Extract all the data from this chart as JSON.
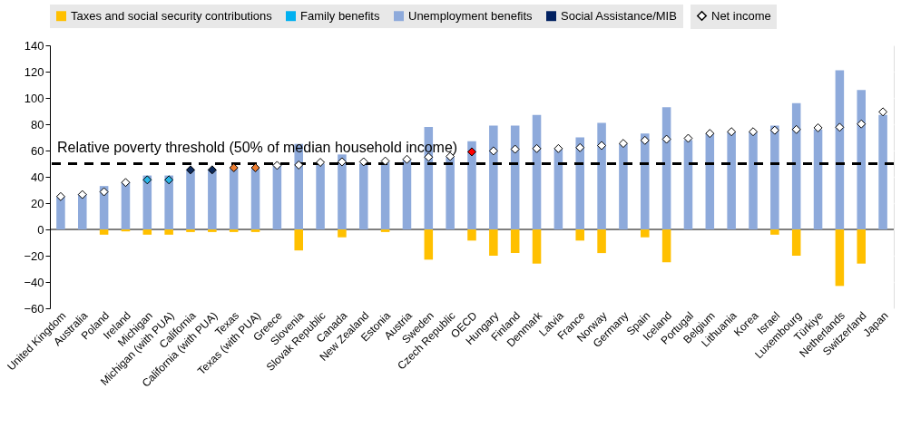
{
  "chart_data": {
    "type": "bar",
    "stacked": true,
    "categories": [
      "United Kingdom",
      "Australia",
      "Poland",
      "Ireland",
      "Michigan",
      "Michigan (with PUA)",
      "California",
      "California (with PUA)",
      "Texas",
      "Texas (with PUA)",
      "Greece",
      "Slovenia",
      "Slovak Republic",
      "Canada",
      "New Zealand",
      "Estonia",
      "Austria",
      "Sweden",
      "Czech Republic",
      "OECD",
      "Hungary",
      "Finland",
      "Denmark",
      "Latvia",
      "France",
      "Norway",
      "Germany",
      "Spain",
      "Iceland",
      "Portugal",
      "Belgium",
      "Lithuania",
      "Korea",
      "Israel",
      "Luxembourg",
      "Türkiye",
      "Netherlands",
      "Switzerland",
      "Japan"
    ],
    "series": [
      {
        "name": "Taxes and social security contributions",
        "color": "#ffc000",
        "values": [
          0,
          0,
          -4,
          -1.5,
          -4,
          -4,
          -2,
          -2,
          -2,
          -2,
          0,
          -16,
          0,
          -6,
          0,
          -2,
          0,
          -23,
          0,
          -8.5,
          -20,
          -18,
          -26,
          0,
          -8.5,
          -18,
          0,
          -6,
          -25,
          0,
          0,
          0,
          0,
          -4,
          -20,
          0,
          -43,
          -26,
          0
        ]
      },
      {
        "name": "Family benefits",
        "color": "#00b0f0",
        "values": [
          null,
          null,
          null,
          null,
          null,
          null,
          null,
          null,
          null,
          null,
          null,
          null,
          null,
          null,
          null,
          null,
          null,
          null,
          null,
          null,
          null,
          null,
          null,
          null,
          null,
          null,
          null,
          null,
          null,
          null,
          null,
          null,
          null,
          null,
          null,
          null,
          null,
          null,
          null
        ]
      },
      {
        "name": "Unemployment benefits",
        "color": "#8eaadb",
        "values": [
          25,
          27,
          33,
          36,
          41,
          41,
          45,
          45,
          46,
          46,
          49,
          65,
          50,
          57,
          50,
          51,
          53,
          78,
          55,
          67,
          79,
          79,
          87,
          61,
          70,
          81,
          65,
          73,
          93,
          68,
          73,
          74,
          74,
          79,
          96,
          76,
          121,
          106,
          87
        ]
      },
      {
        "name": "Social Assistance/MIB",
        "color": "#002060",
        "values": [
          null,
          null,
          null,
          null,
          null,
          null,
          null,
          null,
          null,
          null,
          null,
          null,
          null,
          null,
          null,
          null,
          null,
          null,
          null,
          null,
          null,
          null,
          null,
          null,
          null,
          null,
          null,
          null,
          null,
          null,
          null,
          null,
          null,
          null,
          null,
          null,
          null,
          null,
          null
        ]
      },
      {
        "name": "Net income",
        "type": "scatter",
        "marker": "diamond",
        "color": "#ffffff",
        "colors": [
          "#ffffff",
          "#ffffff",
          "#ffffff",
          "#ffffff",
          "#29b6e8",
          "#29b6e8",
          "#0d2a5c",
          "#0d2a5c",
          "#ed7d31",
          "#ed7d31",
          "#ffffff",
          "#ffffff",
          "#ffffff",
          "#ffffff",
          "#ffffff",
          "#ffffff",
          "#ffffff",
          "#ffffff",
          "#ffffff",
          "#ff0000",
          "#ffffff",
          "#ffffff",
          "#ffffff",
          "#ffffff",
          "#ffffff",
          "#ffffff",
          "#ffffff",
          "#ffffff",
          "#ffffff",
          "#ffffff",
          "#ffffff",
          "#ffffff",
          "#ffffff",
          "#ffffff",
          "#ffffff",
          "#ffffff",
          "#ffffff",
          "#ffffff",
          "#ffffff"
        ],
        "values": [
          25,
          26.5,
          28.6,
          35.7,
          37.7,
          37.7,
          45.3,
          45.3,
          46.9,
          46.9,
          48.7,
          49,
          51,
          51.4,
          51.4,
          52,
          53.3,
          55,
          55.5,
          59,
          59.7,
          61,
          61.5,
          61.5,
          62.2,
          63.8,
          65.4,
          67.7,
          68.6,
          69.3,
          73,
          74.3,
          74.3,
          75.4,
          76,
          77.3,
          77.7,
          80.2,
          89.4
        ]
      }
    ],
    "ylim": [
      -60,
      140
    ],
    "yticks": [
      -60,
      -40,
      -20,
      0,
      20,
      40,
      60,
      80,
      100,
      120,
      140
    ],
    "ref_lines": [
      {
        "axis": "y",
        "value": 50,
        "label": "Relative poverty threshold (50% of median household income)",
        "color": "#000000",
        "line_style": "dashed"
      }
    ],
    "grid": true,
    "legend": "top"
  }
}
